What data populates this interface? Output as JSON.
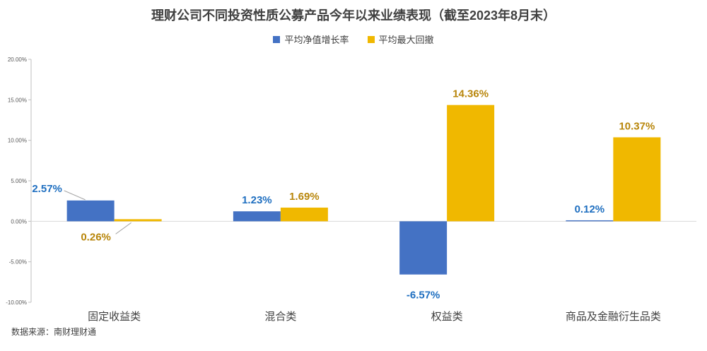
{
  "colors": {
    "series1": "#4472C4",
    "series2": "#F0B800",
    "label1": "#1F6FC0",
    "label2": "#B8860B"
  },
  "chart_data": {
    "type": "bar",
    "title": "理财公司不同投资性质公募产品今年以来业绩表现（截至2023年8月末）",
    "categories": [
      "固定收益类",
      "混合类",
      "权益类",
      "商品及金融衍生品类"
    ],
    "series": [
      {
        "name": "平均净值增长率",
        "values": [
          2.57,
          1.23,
          -6.57,
          0.12
        ],
        "labels": [
          "2.57%",
          "1.23%",
          "-6.57%",
          "0.12%"
        ]
      },
      {
        "name": "平均最大回撤",
        "values": [
          0.26,
          1.69,
          14.36,
          10.37
        ],
        "labels": [
          "0.26%",
          "1.69%",
          "14.36%",
          "10.37%"
        ]
      }
    ],
    "ylim": [
      -10,
      20
    ],
    "yticks": [
      "-10.00%",
      "-5.00%",
      "0.00%",
      "5.00%",
      "10.00%",
      "15.00%",
      "20.00%"
    ],
    "legend": "top-center",
    "grid": false
  },
  "source": "数据来源：南财理财通"
}
